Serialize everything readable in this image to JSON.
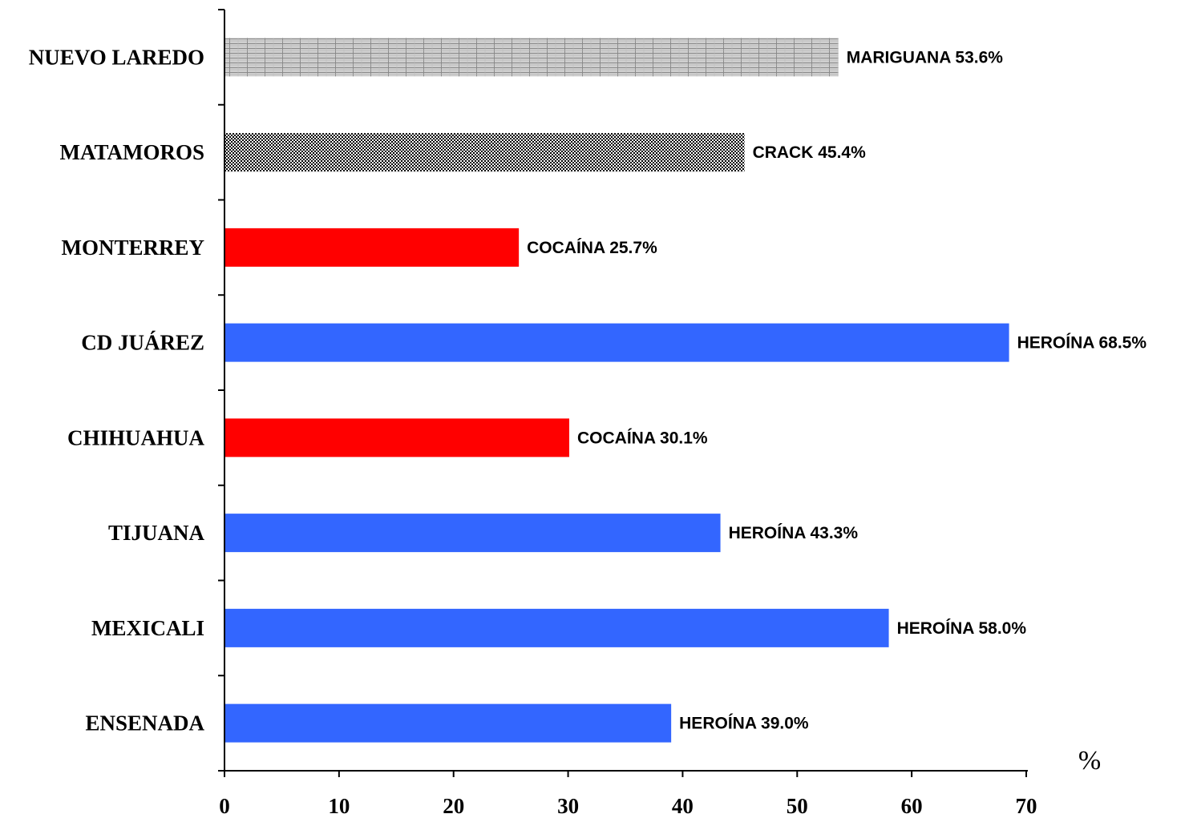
{
  "chart_data": {
    "type": "bar",
    "orientation": "horizontal",
    "categories": [
      "NUEVO LAREDO",
      "MATAMOROS",
      "MONTERREY",
      "CD JUÁREZ",
      "CHIHUAHUA",
      "TIJUANA",
      "MEXICALI",
      "ENSENADA"
    ],
    "values": [
      53.6,
      45.4,
      25.7,
      68.5,
      30.1,
      43.3,
      58.0,
      39.0
    ],
    "bar_labels": [
      "MARIGUANA 53.6%",
      "CRACK 45.4%",
      "COCAÍNA 25.7%",
      "HEROÍNA 68.5%",
      "COCAÍNA 30.1%",
      "HEROÍNA 43.3%",
      "HEROÍNA 58.0%",
      "HEROÍNA 39.0%"
    ],
    "bar_fills": [
      "brick-pattern",
      "dot-pattern",
      "#ff0000",
      "#3366ff",
      "#ff0000",
      "#3366ff",
      "#3366ff",
      "#3366ff"
    ],
    "x_ticks": [
      "0",
      "10",
      "20",
      "30",
      "40",
      "50",
      "60",
      "70"
    ],
    "xlim": [
      0,
      70
    ],
    "xlabel": "%",
    "ylabel": "",
    "title": "",
    "grid": false,
    "legend": "none"
  }
}
